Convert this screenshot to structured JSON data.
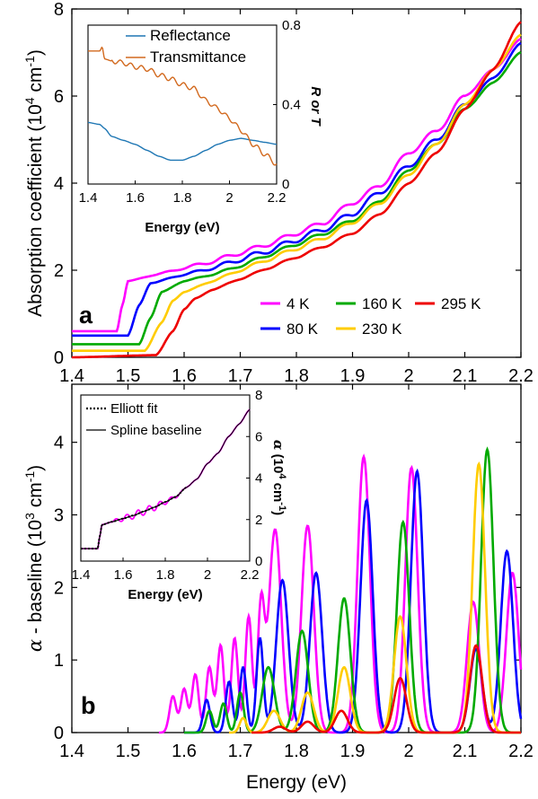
{
  "chart_data": [
    {
      "id": "a",
      "type": "line",
      "panel_label": "a",
      "xlabel": "",
      "ylabel": "Absorption coefficient (10^4 cm^-1)",
      "xlim": [
        1.4,
        2.2
      ],
      "ylim": [
        0,
        8
      ],
      "xticks": [
        "1.4",
        "1.5",
        "1.6",
        "1.7",
        "1.8",
        "1.9",
        "2",
        "2.1",
        "2.2"
      ],
      "yticks": [
        "0",
        "2",
        "4",
        "6",
        "8"
      ],
      "legend_position": "bottom-right",
      "series": [
        {
          "name": "4 K",
          "color": "#ff00ff",
          "x": [
            1.4,
            1.48,
            1.49,
            1.5,
            1.55,
            1.6,
            1.65,
            1.7,
            1.75,
            1.8,
            1.85,
            1.9,
            1.95,
            2.0,
            2.05,
            2.1,
            2.15,
            2.2
          ],
          "y": [
            0.6,
            0.6,
            1.2,
            1.75,
            1.9,
            2.05,
            2.2,
            2.4,
            2.6,
            2.85,
            3.1,
            3.55,
            3.95,
            4.7,
            5.2,
            6.0,
            6.6,
            7.3
          ]
        },
        {
          "name": "80 K",
          "color": "#0000ff",
          "x": [
            1.4,
            1.5,
            1.52,
            1.54,
            1.6,
            1.65,
            1.7,
            1.75,
            1.8,
            1.85,
            1.9,
            1.95,
            2.0,
            2.05,
            2.1,
            2.15,
            2.2
          ],
          "y": [
            0.5,
            0.5,
            1.2,
            1.7,
            1.9,
            2.05,
            2.25,
            2.45,
            2.7,
            2.95,
            3.3,
            3.8,
            4.4,
            5.0,
            5.8,
            6.4,
            7.2
          ]
        },
        {
          "name": "160 K",
          "color": "#00aa00",
          "x": [
            1.4,
            1.52,
            1.54,
            1.56,
            1.6,
            1.65,
            1.7,
            1.75,
            1.8,
            1.85,
            1.9,
            1.95,
            2.0,
            2.05,
            2.1,
            2.15,
            2.2
          ],
          "y": [
            0.3,
            0.3,
            0.9,
            1.5,
            1.75,
            1.9,
            2.1,
            2.35,
            2.6,
            2.85,
            3.15,
            3.6,
            4.3,
            4.9,
            5.7,
            6.3,
            7.0
          ]
        },
        {
          "name": "230 K",
          "color": "#ffcc00",
          "x": [
            1.4,
            1.53,
            1.56,
            1.58,
            1.6,
            1.65,
            1.7,
            1.75,
            1.8,
            1.85,
            1.9,
            1.95,
            2.0,
            2.05,
            2.1,
            2.15,
            2.2
          ],
          "y": [
            0.15,
            0.15,
            0.8,
            1.3,
            1.5,
            1.75,
            2.0,
            2.25,
            2.5,
            2.75,
            3.1,
            3.55,
            4.2,
            4.9,
            5.8,
            6.6,
            7.4
          ]
        },
        {
          "name": "295 K",
          "color": "#ee0000",
          "x": [
            1.4,
            1.55,
            1.58,
            1.6,
            1.62,
            1.65,
            1.7,
            1.75,
            1.8,
            1.85,
            1.9,
            1.95,
            2.0,
            2.05,
            2.1,
            2.15,
            2.2
          ],
          "y": [
            0.0,
            0.05,
            0.6,
            1.1,
            1.35,
            1.55,
            1.8,
            2.05,
            2.3,
            2.55,
            2.85,
            3.3,
            4.0,
            4.7,
            5.7,
            6.6,
            7.7
          ]
        }
      ],
      "legend_order": [
        "4 K",
        "80 K",
        "160 K",
        "230 K",
        "295 K"
      ],
      "inset": {
        "xlabel": "Energy (eV)",
        "ylabel_right": "R or T",
        "xlim": [
          1.4,
          2.2
        ],
        "ylim": [
          0,
          0.8
        ],
        "xticks": [
          "1.4",
          "1.6",
          "1.8",
          "2",
          "2.2"
        ],
        "yticks": [
          "0",
          "0.4",
          "0.8"
        ],
        "series": [
          {
            "name": "Reflectance",
            "color": "#1f77b4",
            "x": [
              1.4,
              1.45,
              1.47,
              1.5,
              1.55,
              1.6,
              1.65,
              1.7,
              1.75,
              1.8,
              1.85,
              1.9,
              1.95,
              2.0,
              2.05,
              2.1,
              2.15,
              2.2
            ],
            "y": [
              0.31,
              0.3,
              0.28,
              0.24,
              0.22,
              0.2,
              0.17,
              0.14,
              0.12,
              0.12,
              0.14,
              0.17,
              0.2,
              0.22,
              0.23,
              0.22,
              0.21,
              0.2
            ]
          },
          {
            "name": "Transmittance",
            "color": "#d2691e",
            "x": [
              1.4,
              1.45,
              1.46,
              1.47,
              1.5,
              1.55,
              1.6,
              1.65,
              1.7,
              1.75,
              1.8,
              1.85,
              1.9,
              1.95,
              2.0,
              2.05,
              2.1,
              2.15,
              2.2
            ],
            "y": [
              0.67,
              0.67,
              0.69,
              0.63,
              0.62,
              0.61,
              0.59,
              0.58,
              0.55,
              0.53,
              0.5,
              0.48,
              0.42,
              0.38,
              0.33,
              0.27,
              0.2,
              0.15,
              0.1
            ]
          }
        ]
      }
    },
    {
      "id": "b",
      "type": "line",
      "panel_label": "b",
      "xlabel": "Energy (eV)",
      "ylabel": "α - baseline (10^3 cm^-1)",
      "xlim": [
        1.4,
        2.2
      ],
      "ylim": [
        0,
        4.8
      ],
      "xticks": [
        "1.4",
        "1.5",
        "1.6",
        "1.7",
        "1.8",
        "1.9",
        "2",
        "2.1",
        "2.2"
      ],
      "yticks": [
        "0",
        "1",
        "2",
        "3",
        "4"
      ],
      "series": [
        {
          "name": "4 K",
          "color": "#ff00ff",
          "peaks": [
            [
              1.58,
              0.5
            ],
            [
              1.6,
              0.6
            ],
            [
              1.62,
              0.8
            ],
            [
              1.645,
              0.9
            ],
            [
              1.665,
              1.2
            ],
            [
              1.69,
              1.3
            ],
            [
              1.715,
              1.6
            ],
            [
              1.737,
              1.7
            ],
            [
              1.762,
              2.8
            ],
            [
              1.82,
              2.85
            ],
            [
              1.92,
              3.8
            ],
            [
              2.005,
              3.65
            ],
            [
              2.115,
              1.8
            ],
            [
              2.185,
              2.2
            ]
          ],
          "start": 1.555,
          "end": 2.2
        },
        {
          "name": "80 K",
          "color": "#0000ff",
          "peaks": [
            [
              1.64,
              0.45
            ],
            [
              1.68,
              0.7
            ],
            [
              1.705,
              0.9
            ],
            [
              1.735,
              1.3
            ],
            [
              1.775,
              2.1
            ],
            [
              1.835,
              2.2
            ],
            [
              1.925,
              3.2
            ],
            [
              2.015,
              3.6
            ],
            [
              2.12,
              1.15
            ],
            [
              2.175,
              2.5
            ]
          ],
          "start": 1.6,
          "end": 2.2
        },
        {
          "name": "160 K",
          "color": "#00aa00",
          "peaks": [
            [
              1.645,
              0.3
            ],
            [
              1.67,
              0.4
            ],
            [
              1.7,
              0.55
            ],
            [
              1.75,
              0.9
            ],
            [
              1.81,
              1.4
            ],
            [
              1.885,
              1.85
            ],
            [
              1.99,
              2.9
            ],
            [
              2.14,
              3.9
            ]
          ],
          "start": 1.6,
          "end": 2.2
        },
        {
          "name": "230 K",
          "color": "#ffcc00",
          "peaks": [
            [
              1.705,
              0.2
            ],
            [
              1.76,
              0.3
            ],
            [
              1.82,
              0.55
            ],
            [
              1.885,
              0.9
            ],
            [
              1.985,
              1.6
            ],
            [
              2.125,
              3.7
            ]
          ],
          "start": 1.68,
          "end": 2.2
        },
        {
          "name": "295 K",
          "color": "#ee0000",
          "peaks": [
            [
              1.77,
              0.08
            ],
            [
              1.82,
              0.15
            ],
            [
              1.88,
              0.3
            ],
            [
              1.985,
              0.75
            ],
            [
              2.12,
              1.2
            ]
          ],
          "start": 1.72,
          "end": 2.2
        }
      ],
      "inset": {
        "xlabel": "Energy (eV)",
        "ylabel_right": "α (10^4 cm^-1)",
        "xlim": [
          1.4,
          2.2
        ],
        "ylim": [
          0,
          8
        ],
        "xticks": [
          "1.4",
          "1.6",
          "1.8",
          "2",
          "2.2"
        ],
        "yticks": [
          "0",
          "2",
          "4",
          "6",
          "8"
        ],
        "legend": [
          "Elliott fit",
          "Spline baseline"
        ]
      }
    }
  ],
  "text": {
    "a_ylabel_main": "Absorption coefficient (10",
    "a_ylabel_sup1": "4",
    "a_ylabel_mid": " cm",
    "a_ylabel_sup2": "-1",
    "a_ylabel_end": ")",
    "a_inset_ylabel": "R or T",
    "b_ylabel_alpha": "α",
    "b_ylabel_main": " - baseline (10",
    "b_ylabel_sup1": "3",
    "b_ylabel_mid": " cm",
    "b_ylabel_sup2": "-1",
    "b_ylabel_end": ")",
    "b_inset_ylabel_alpha": "α",
    "b_inset_ylabel_main": " (10",
    "b_inset_ylabel_sup1": "4",
    "b_inset_ylabel_mid": " cm",
    "b_inset_ylabel_sup2": "-1",
    "b_inset_ylabel_end": ")",
    "xlabel": "Energy (eV)"
  }
}
